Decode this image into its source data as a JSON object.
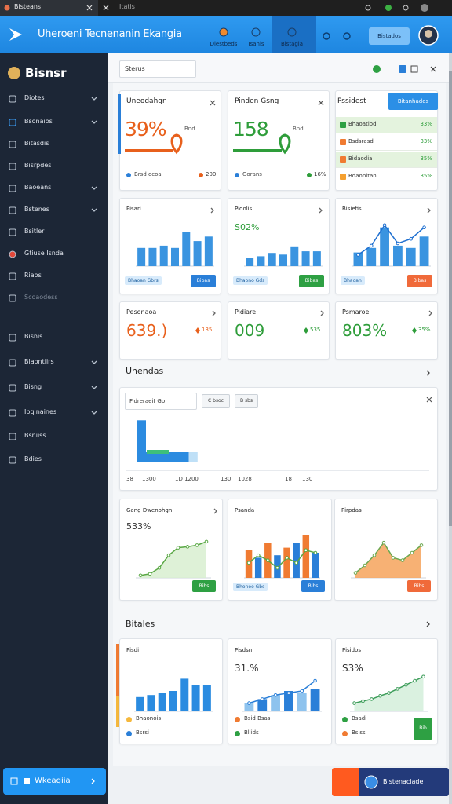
{
  "browser": {
    "tabs": [
      "Bisteans",
      "Itatis"
    ]
  },
  "header": {
    "title": "Uheroeni Tecnenanin Ekangia",
    "nav": [
      "Diestbeds",
      "Tsanis",
      "Bistagia"
    ],
    "button": "Bistados"
  },
  "sidebar": {
    "brand": "Bisnsr",
    "items": [
      "Diotes",
      "Bsonaios",
      "Bitasdis",
      "Bisrpdes",
      "Baoeans",
      "Bstenes",
      "Bsitler",
      "Gtiuse Isnda",
      "Riaos",
      "Scoaodess",
      "Bisnis",
      "Blaontiirs",
      "Bisng",
      "Ibqinaines",
      "Bsniiss",
      "Bdies"
    ],
    "footer": "Wkeagiia"
  },
  "toolbar": {
    "search": "Sterus",
    "action": "Bistenaciade"
  },
  "summary": [
    {
      "title": "Uneodahgn",
      "value": "39%",
      "color": "#e8601c",
      "note": "Bnd",
      "legend": "Brsd ocoa",
      "badge": "200"
    },
    {
      "title": "Pinden Gsng",
      "value": "158",
      "color": "#2e9d3a",
      "note": "Bnd",
      "legend": "Gorans",
      "badge": "16%"
    }
  ],
  "ranking": {
    "title": "Pssidest",
    "button": "Bitanhades",
    "rows": [
      [
        "Bhaoatiodi",
        "33%"
      ],
      [
        "Bsdsrasd",
        "33%"
      ],
      [
        "Bidaodia",
        "35%"
      ],
      [
        "Bdaonitan",
        "35%"
      ]
    ]
  },
  "trends": [
    {
      "title": "Pisari",
      "chart": {
        "type": "bar",
        "color": "#3a94e0",
        "ylim": [
          0,
          100
        ],
        "values": [
          40,
          40,
          45,
          40,
          75,
          55,
          65
        ]
      },
      "legend": "Bhaoan Gbrs",
      "button": "Bibas",
      "button_color": "#2a7fd8"
    },
    {
      "title": "Pidolis",
      "value": "S02%",
      "chart": {
        "type": "bar",
        "color": "#3a94e0",
        "ylim": [
          0,
          100
        ],
        "values": [
          25,
          30,
          40,
          35,
          60,
          45,
          45
        ]
      },
      "legend": "Bhaono Gds",
      "button": "Bibas",
      "button_color": "#2ea043"
    },
    {
      "title": "Bisiefis",
      "chart": {
        "type": "bar-line",
        "color": "#3a94e0",
        "line_color": "#1e6fd0",
        "ylim": [
          0,
          100
        ],
        "values": [
          30,
          40,
          85,
          45,
          40,
          65
        ],
        "line": [
          25,
          45,
          90,
          50,
          60,
          85
        ]
      },
      "legend": "Bhaoan",
      "button": "Bibas",
      "button_color": "#f06a3a"
    }
  ],
  "kpis": [
    {
      "title": "Pesonaoa",
      "value": "639.)",
      "color": "#e8601c",
      "delta": "135"
    },
    {
      "title": "Pidiare",
      "value": "009",
      "color": "#2e9d3a",
      "delta": "535"
    },
    {
      "title": "Psmaroe",
      "value": "803%",
      "color": "#2e9d3a",
      "delta": "35%"
    }
  ],
  "overview": {
    "title": "Unendas",
    "filter": "Fidreraeit Gp",
    "buttons": [
      "C bsoc",
      "B sbs"
    ],
    "chart": {
      "ylim": [
        0,
        100
      ],
      "xlim": [
        0,
        100
      ],
      "column": 85,
      "segments": [
        {
          "value": 41,
          "color": "#2b8be0"
        },
        {
          "value": 7,
          "color": "#bfe0f7"
        }
      ],
      "marker": {
        "value": 18,
        "color": "#3ec07a"
      }
    },
    "xlabels": [
      "38",
      "1300",
      "1D 1200",
      "130",
      "1028",
      "18",
      "130"
    ]
  },
  "growth": [
    {
      "title": "Gang Dwenohgn",
      "value": "533%",
      "chart": {
        "type": "line-area",
        "color": "#5aa845",
        "fill": "#d8eed0",
        "ylim": [
          0,
          100
        ],
        "values": [
          5,
          8,
          20,
          45,
          60,
          62,
          65,
          72
        ]
      },
      "button": "Bibs",
      "button_color": "#2ea043"
    },
    {
      "title": "Psanda",
      "chart": {
        "type": "bar-line",
        "color": "#f07b32",
        "alt_color": "#2a7fd8",
        "line_color": "#5aa845",
        "ylim": [
          0,
          100
        ],
        "values": [
          55,
          40,
          70,
          45,
          60,
          70,
          85,
          50
        ],
        "line": [
          30,
          45,
          35,
          20,
          40,
          30,
          55,
          50
        ]
      },
      "legend": "Bhonoo Gbs",
      "button": "Bibs",
      "button_color": "#2a7fd8"
    },
    {
      "title": "Pirpdas",
      "chart": {
        "type": "line-area",
        "color": "#6aa84f",
        "fill": "#f6a35c",
        "ylim": [
          0,
          100
        ],
        "values": [
          10,
          25,
          45,
          70,
          40,
          35,
          50,
          65
        ]
      },
      "button": "Bibs",
      "button_color": "#f06a3a"
    }
  ],
  "details": {
    "title": "Bitales",
    "cards": [
      {
        "title": "Pisdi",
        "chart": {
          "type": "bar",
          "color": "#2a8be0",
          "ylim": [
            0,
            100
          ],
          "values": [
            35,
            40,
            45,
            50,
            80,
            65,
            65
          ]
        },
        "legend": [
          {
            "label": "Bhaonois",
            "color": "#f5b83d"
          },
          {
            "label": "Bsrsi",
            "color": "#2a7fd8"
          }
        ]
      },
      {
        "title": "Pisdsn",
        "value": "31.%",
        "chart": {
          "type": "bar-line",
          "color": "#8ec3ee",
          "alt_color": "#2a7fd8",
          "line_color": "#2a7fd8",
          "ylim": [
            0,
            100
          ],
          "values": [
            20,
            30,
            40,
            50,
            45,
            55
          ],
          "line": [
            20,
            30,
            40,
            45,
            50,
            75
          ]
        },
        "legend": [
          {
            "label": "Bsid Bsas",
            "color": "#f07b32"
          },
          {
            "label": "Bllids",
            "color": "#2ea043"
          }
        ]
      },
      {
        "title": "Pisidos",
        "value": "S3%",
        "chart": {
          "type": "line-area",
          "color": "#3d9d5a",
          "fill": "#d4eedb",
          "ylim": [
            0,
            100
          ],
          "values": [
            20,
            25,
            30,
            38,
            45,
            55,
            65,
            75,
            85
          ]
        },
        "legend": [
          {
            "label": "Bsadi",
            "color": "#2ea043"
          },
          {
            "label": "Bsiss",
            "color": "#f07b32"
          }
        ],
        "button": "Bib",
        "button_color": "#2ea043"
      }
    ]
  }
}
